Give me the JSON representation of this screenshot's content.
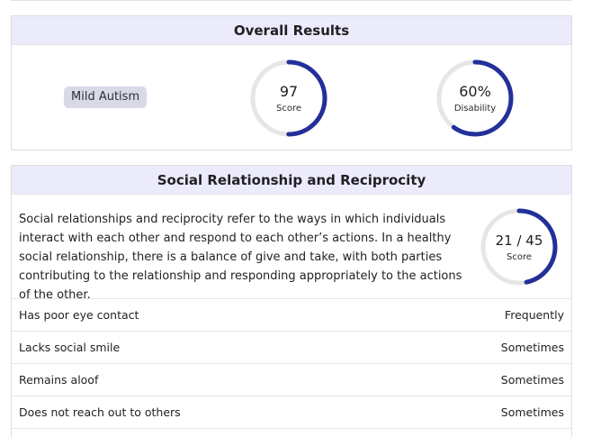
{
  "overall": {
    "title": "Overall Results",
    "badge": "Mild Autism",
    "score": {
      "value": "97",
      "label": "Score",
      "fraction": 0.5,
      "color": "#23309a"
    },
    "disability": {
      "value": "60%",
      "label": "Disability",
      "fraction": 0.6,
      "color": "#23309a"
    }
  },
  "social": {
    "title": "Social Relationship and Reciprocity",
    "description": "Social relationships and reciprocity refer to the ways in which individuals interact with each other and respond to each other’s actions. In a healthy social relationship, there is a balance of give and take, with both parties contributing to the relationship and responding appropriately to the actions of the other.",
    "score": {
      "value": "21 / 45",
      "label": "Score",
      "fraction": 0.4667,
      "color": "#23309a"
    },
    "items": [
      {
        "label": "Has poor eye contact",
        "value": "Frequently"
      },
      {
        "label": "Lacks social smile",
        "value": "Sometimes"
      },
      {
        "label": "Remains aloof",
        "value": "Sometimes"
      },
      {
        "label": "Does not reach out to others",
        "value": "Sometimes"
      }
    ]
  },
  "colors": {
    "header_bg": "#ebebfb",
    "ring_track": "#e6e6e6",
    "ring_fill": "#23309a",
    "badge_bg": "#d9d9e8"
  }
}
